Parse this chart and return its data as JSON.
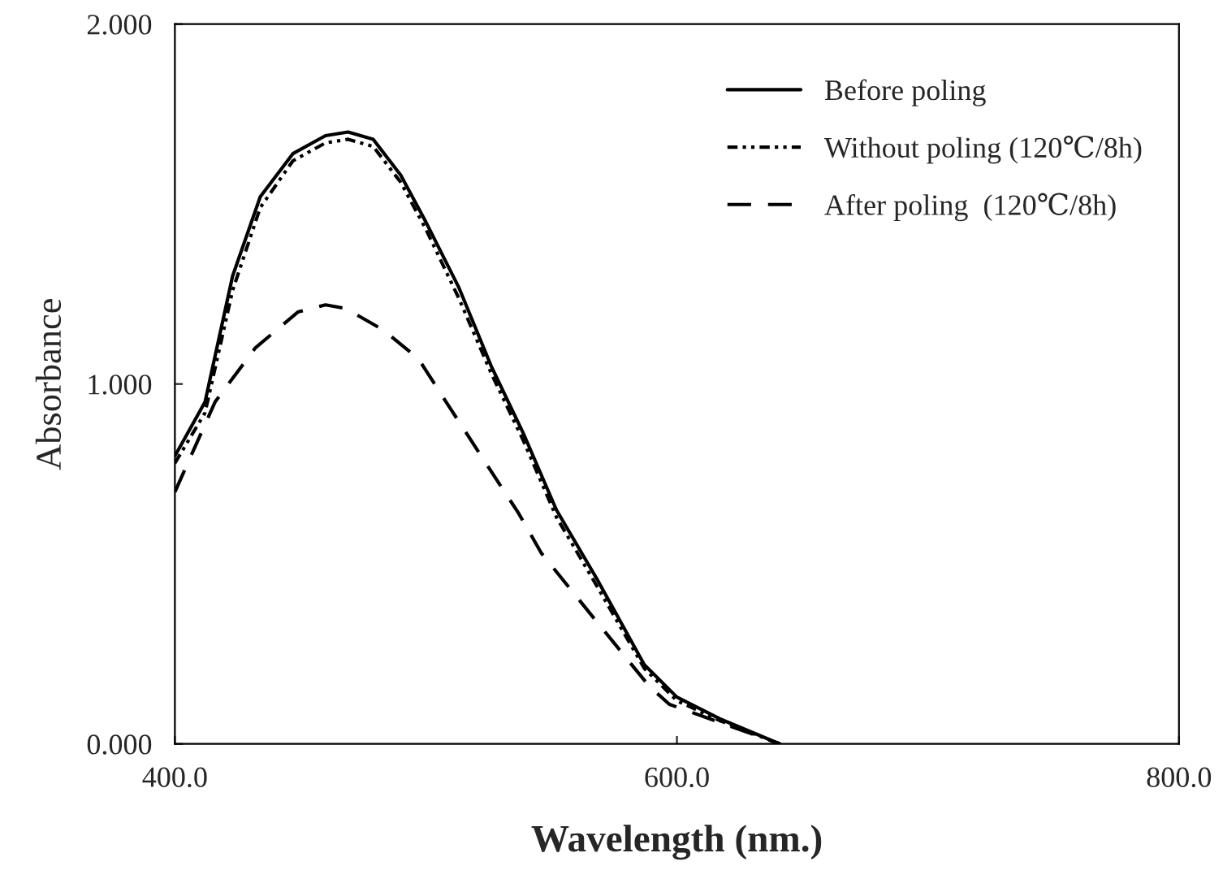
{
  "chart_data": {
    "type": "line",
    "xlabel": "Wavelength (nm.)",
    "ylabel": "Absorbance",
    "xlim": [
      400,
      800
    ],
    "ylim": [
      0,
      2
    ],
    "xticks": [
      {
        "value": 400,
        "label": "400.0"
      },
      {
        "value": 600,
        "label": "600.0"
      },
      {
        "value": 800,
        "label": "800.0"
      }
    ],
    "yticks": [
      {
        "value": 0,
        "label": "0.000"
      },
      {
        "value": 1,
        "label": "1.000"
      },
      {
        "value": 2,
        "label": "2.000"
      }
    ],
    "grid": false,
    "legend": "top right",
    "marker": "none",
    "series": [
      {
        "name": "Before poling",
        "color": "#000000",
        "line_style": "solid",
        "x": [
          400,
          412,
          423,
          434,
          447,
          460,
          469,
          479,
          490,
          500,
          513,
          526,
          539,
          552,
          568,
          587,
          600,
          617,
          641
        ],
        "values": [
          0.8,
          0.95,
          1.3,
          1.52,
          1.64,
          1.69,
          1.7,
          1.68,
          1.58,
          1.45,
          1.27,
          1.05,
          0.86,
          0.65,
          0.46,
          0.22,
          0.13,
          0.07,
          0.0
        ]
      },
      {
        "name": "Without poling (120℃/8h)",
        "color": "#000000",
        "line_style": "dotted",
        "x": [
          400,
          412,
          423,
          434,
          447,
          460,
          469,
          479,
          490,
          500,
          513,
          526,
          539,
          552,
          568,
          587,
          600,
          617,
          641
        ],
        "values": [
          0.78,
          0.92,
          1.26,
          1.49,
          1.62,
          1.67,
          1.68,
          1.66,
          1.56,
          1.43,
          1.24,
          1.03,
          0.84,
          0.63,
          0.44,
          0.21,
          0.12,
          0.065,
          0.0
        ]
      },
      {
        "name": "After poling  (120℃/8h)",
        "color": "#000000",
        "line_style": "dashed",
        "x": [
          400,
          416,
          432,
          449,
          460,
          468,
          483,
          497,
          509,
          522,
          537,
          546,
          568,
          589,
          597,
          617,
          641
        ],
        "values": [
          0.7,
          0.95,
          1.1,
          1.2,
          1.22,
          1.21,
          1.15,
          1.07,
          0.94,
          0.8,
          0.64,
          0.53,
          0.34,
          0.16,
          0.11,
          0.06,
          0.0
        ]
      }
    ]
  }
}
